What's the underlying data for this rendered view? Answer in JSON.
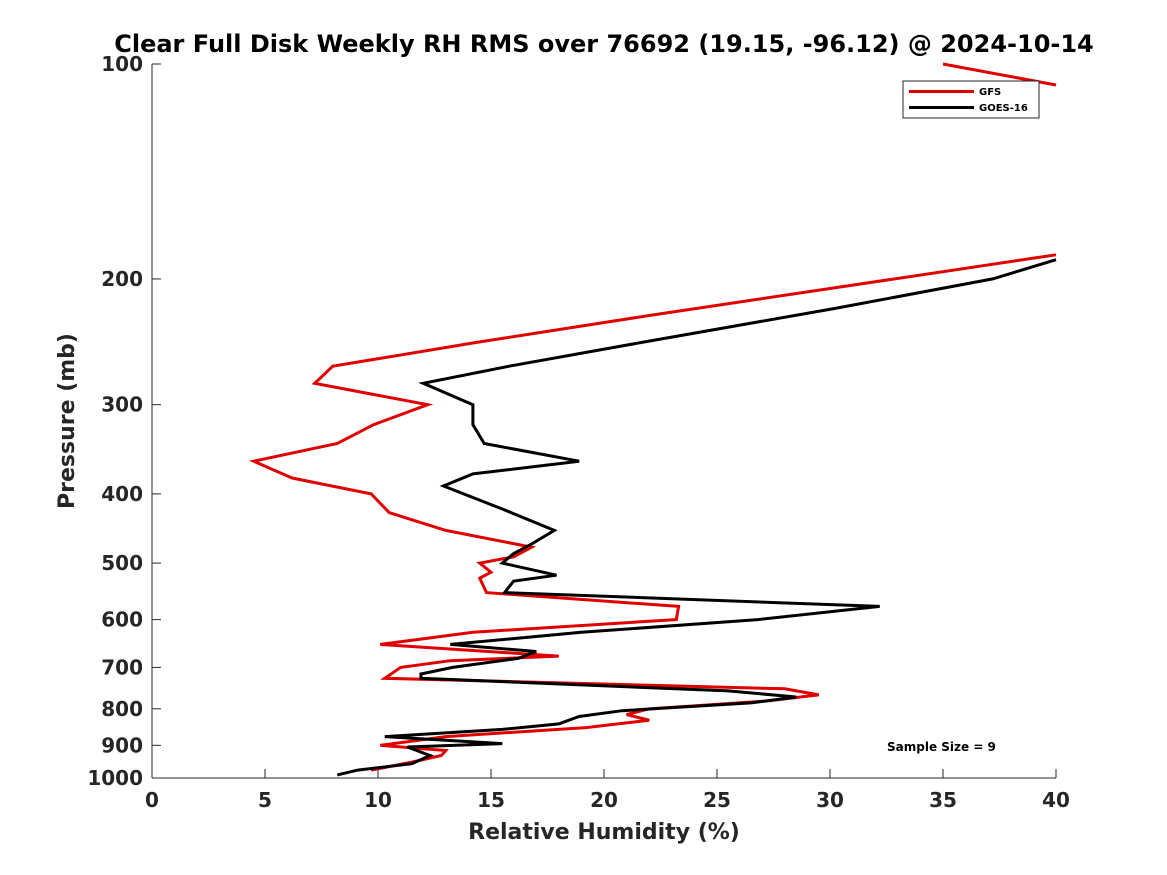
{
  "chart_data": {
    "type": "line",
    "title": "Clear Full Disk Weekly RH RMS over 76692 (19.15, -96.12) @ 2024-10-14",
    "xlabel": "Relative Humidity (%)",
    "ylabel": "Pressure (mb)",
    "xlim": [
      0,
      40
    ],
    "ylim": [
      1000,
      100
    ],
    "yscale": "log",
    "x_ticks": [
      "0",
      "5",
      "10",
      "15",
      "20",
      "25",
      "30",
      "35",
      "40"
    ],
    "y_ticks": [
      "100",
      "200",
      "300",
      "400",
      "500",
      "600",
      "700",
      "800",
      "900",
      "1000"
    ],
    "legend_position": "top-right",
    "annotation": "Sample Size = 9",
    "series": [
      {
        "name": "GFS",
        "color": "#e00000",
        "points": [
          [
            35.0,
            100
          ],
          [
            40.0,
            107
          ],
          [
            null,
            null
          ],
          [
            40.0,
            185
          ],
          [
            22.0,
            225
          ],
          [
            14.5,
            245
          ],
          [
            8.0,
            265
          ],
          [
            7.2,
            280
          ],
          [
            12.2,
            300
          ],
          [
            9.8,
            320
          ],
          [
            8.2,
            340
          ],
          [
            4.5,
            360
          ],
          [
            6.2,
            380
          ],
          [
            9.7,
            400
          ],
          [
            10.5,
            425
          ],
          [
            13.0,
            450
          ],
          [
            16.8,
            475
          ],
          [
            16.0,
            490
          ],
          [
            14.5,
            500
          ],
          [
            15.0,
            515
          ],
          [
            14.5,
            525
          ],
          [
            14.8,
            550
          ],
          [
            23.3,
            575
          ],
          [
            23.2,
            600
          ],
          [
            14.2,
            625
          ],
          [
            10.1,
            650
          ],
          [
            18.0,
            675
          ],
          [
            13.2,
            685
          ],
          [
            11.0,
            700
          ],
          [
            10.3,
            725
          ],
          [
            28.0,
            750
          ],
          [
            29.5,
            765
          ],
          [
            27.2,
            780
          ],
          [
            22.0,
            800
          ],
          [
            21.0,
            815
          ],
          [
            22.0,
            830
          ],
          [
            19.2,
            850
          ],
          [
            13.0,
            875
          ],
          [
            10.1,
            900
          ],
          [
            13.0,
            915
          ],
          [
            12.8,
            930
          ],
          [
            11.5,
            950
          ],
          [
            9.7,
            975
          ]
        ]
      },
      {
        "name": "GOES-16",
        "color": "#000000",
        "points": [
          [
            40.0,
            188
          ],
          [
            37.2,
            200
          ],
          [
            30.2,
            220
          ],
          [
            21.8,
            245
          ],
          [
            15.8,
            265
          ],
          [
            12.0,
            280
          ],
          [
            14.2,
            300
          ],
          [
            14.2,
            320
          ],
          [
            14.7,
            340
          ],
          [
            18.9,
            360
          ],
          [
            14.2,
            375
          ],
          [
            12.9,
            390
          ],
          [
            15.5,
            420
          ],
          [
            17.8,
            450
          ],
          [
            16.8,
            470
          ],
          [
            16.0,
            485
          ],
          [
            15.5,
            500
          ],
          [
            17.9,
            520
          ],
          [
            16.0,
            530
          ],
          [
            15.6,
            550
          ],
          [
            32.2,
            575
          ],
          [
            26.8,
            600
          ],
          [
            19.0,
            625
          ],
          [
            13.2,
            650
          ],
          [
            17.0,
            665
          ],
          [
            16.2,
            680
          ],
          [
            13.3,
            700
          ],
          [
            11.9,
            715
          ],
          [
            11.9,
            725
          ],
          [
            25.5,
            755
          ],
          [
            28.5,
            770
          ],
          [
            26.5,
            785
          ],
          [
            20.8,
            805
          ],
          [
            18.9,
            820
          ],
          [
            18.0,
            840
          ],
          [
            15.5,
            855
          ],
          [
            10.3,
            875
          ],
          [
            15.5,
            895
          ],
          [
            11.3,
            905
          ],
          [
            12.3,
            930
          ],
          [
            11.5,
            955
          ],
          [
            9.1,
            975
          ],
          [
            8.2,
            990
          ]
        ]
      }
    ]
  }
}
